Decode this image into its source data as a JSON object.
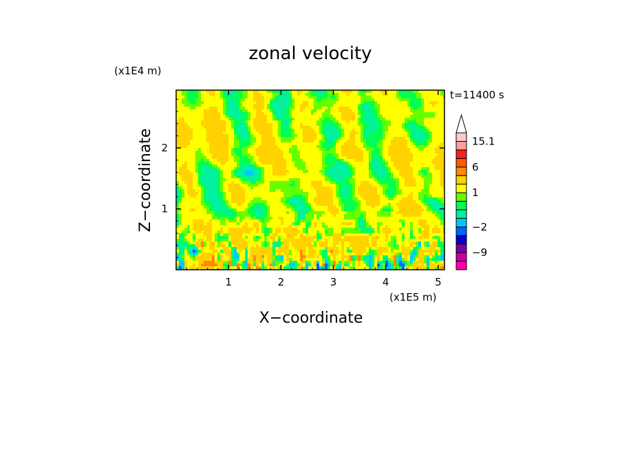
{
  "chart_data": {
    "type": "heatmap",
    "title": "zonal velocity",
    "xlabel": "X−coordinate",
    "ylabel": "Z−coordinate",
    "x_unit": "(x1E5 m)",
    "y_unit": "(x1E4 m)",
    "time_label": "t=11400 s",
    "xlim": [
      0,
      5.12
    ],
    "ylim": [
      0,
      2.95
    ],
    "x_ticks": [
      1,
      2,
      3,
      4,
      5
    ],
    "x_tick_labels": [
      "1",
      "2",
      "3",
      "4",
      "5"
    ],
    "y_ticks": [
      1,
      2
    ],
    "y_tick_labels": [
      "1",
      "2"
    ],
    "colorbar": {
      "levels": [
        -15,
        -12,
        -9,
        -6,
        -4,
        -2,
        -1,
        0,
        0.5,
        1,
        2,
        4,
        6,
        8,
        10,
        15.1
      ],
      "colors": [
        "#ff00a8",
        "#c800a0",
        "#7800a8",
        "#0000c8",
        "#0064ff",
        "#00c8ff",
        "#00f0a0",
        "#00ff50",
        "#64ff00",
        "#ffff00",
        "#ffd200",
        "#ff8c00",
        "#ff5a00",
        "#ff1e1e",
        "#ffa0a0",
        "#ffc8c8"
      ],
      "labels": [
        "15.1",
        "6",
        "1",
        "−2",
        "−9"
      ],
      "label_values": [
        15.1,
        6,
        1,
        -2,
        -9
      ],
      "extend_max": true
    },
    "grid": false
  }
}
